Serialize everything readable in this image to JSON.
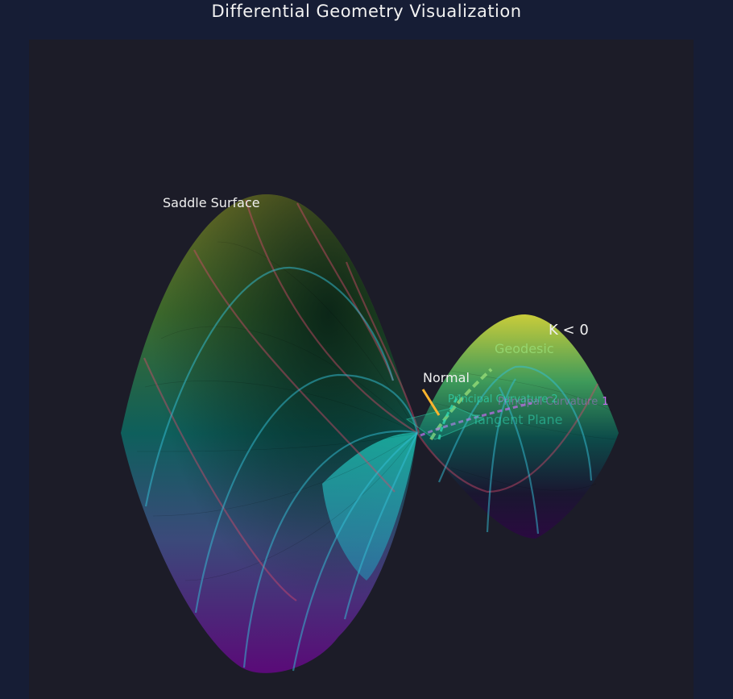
{
  "title": "Differential Geometry Visualization",
  "labels": {
    "surface": "Saddle Surface",
    "curvature": "K < 0",
    "geodesic": "Geodesic",
    "normal": "Normal",
    "principal2": "Principal Curvature 2",
    "principal1_text": "Principal Curvature",
    "principal1_num": "1",
    "tangent": "Tangent Plane"
  },
  "colors": {
    "background": "#161d35",
    "panel": "#1c1c28",
    "normal": "#ffb52e",
    "geodesic": "#9be07a",
    "principal1": "#c76cf0",
    "principal2": "#2fd6b0",
    "meridian": "#d24a6a",
    "level": "#33c0d8"
  }
}
